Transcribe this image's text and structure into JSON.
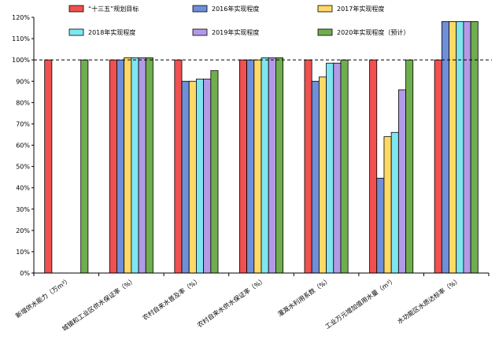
{
  "chart_data": {
    "type": "bar",
    "title": "",
    "xlabel": "",
    "ylabel": "",
    "ylim": [
      0,
      120
    ],
    "y_ticks": [
      0,
      10,
      20,
      30,
      40,
      50,
      60,
      70,
      80,
      90,
      100,
      110,
      120
    ],
    "y_tick_labels": [
      "0%",
      "10%",
      "20%",
      "30%",
      "40%",
      "50%",
      "60%",
      "70%",
      "80%",
      "90%",
      "100%",
      "110%",
      "120%"
    ],
    "reference_line": 100,
    "legend_position": "top",
    "categories": [
      "新增供水能力（万m³）",
      "城镇和工业区供水保证率（%）",
      "农村自来水普及率（%）",
      "农村自来水供水保证率（%）",
      "灌溉水利用系数（%）",
      "工业万元增加值用水量（m³）",
      "水功能区水质达标率（%）"
    ],
    "series": [
      {
        "name": "“十三五”规划目标",
        "color": "#f05050",
        "values": [
          100,
          100,
          100,
          100,
          100,
          100,
          100
        ]
      },
      {
        "name": "2016年实现程度",
        "color": "#6f8fd8",
        "values": [
          null,
          100,
          90,
          100,
          90,
          44.5,
          118
        ]
      },
      {
        "name": "2017年实现程度",
        "color": "#ffd966",
        "values": [
          null,
          101,
          90,
          100,
          92,
          64,
          118
        ]
      },
      {
        "name": "2018年实现程度",
        "color": "#7fe6f0",
        "values": [
          null,
          101,
          91,
          101,
          98.5,
          66,
          118
        ]
      },
      {
        "name": "2019年实现程度",
        "color": "#b39ae6",
        "values": [
          null,
          101,
          91,
          101,
          98.5,
          86,
          118
        ]
      },
      {
        "name": "2020年实现程度（预计）",
        "color": "#6fae4e",
        "values": [
          100,
          101,
          95,
          101,
          100,
          100,
          118
        ]
      }
    ]
  }
}
